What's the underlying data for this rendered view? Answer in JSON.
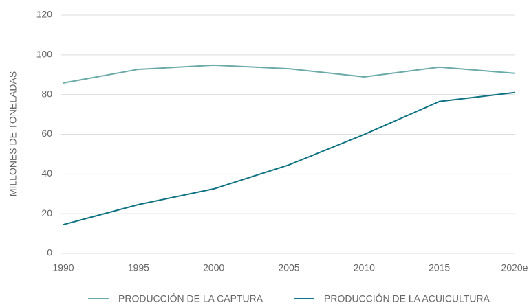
{
  "chart_data": {
    "type": "line",
    "y_label": "MILLONES DE TONELADAS",
    "categories": [
      "1990",
      "1995",
      "2000",
      "2005",
      "2010",
      "2015",
      "2020e"
    ],
    "series": [
      {
        "name": "PRODUCCIÓN DE LA CAPTURA",
        "color": "#6aaaa8",
        "values": [
          85.8,
          92.7,
          94.8,
          93,
          88.9,
          93.8,
          90.7
        ]
      },
      {
        "name": "PRODUCCIÓN DE LA ACUICULTURA",
        "color": "#0f7384",
        "values": [
          14.5,
          24.6,
          32.5,
          44.6,
          59.9,
          76.5,
          81
        ]
      }
    ],
    "ylim": [
      0,
      120
    ],
    "yticks": [
      0,
      20,
      40,
      60,
      80,
      100,
      120
    ],
    "grid": true,
    "legend": "bottom"
  }
}
